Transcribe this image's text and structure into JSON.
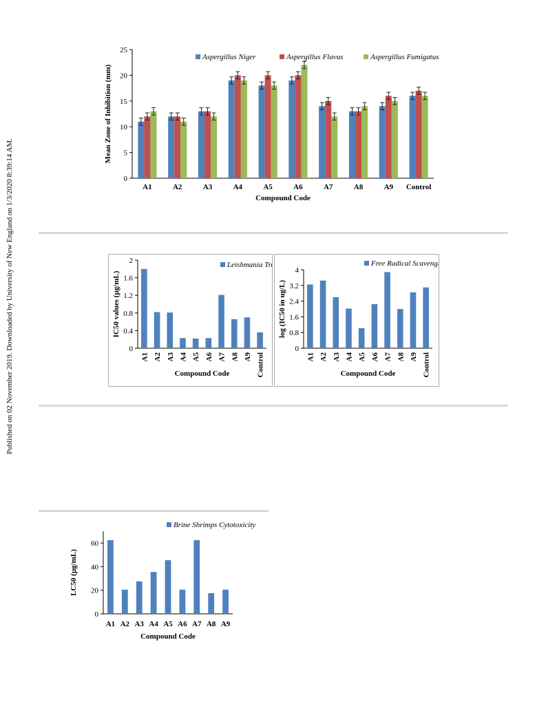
{
  "side_note": "Published on 02 November 2019. Downloaded by University of New England on 1/3/2020 8:39:14 AM.",
  "colors": {
    "blue": "#4f81bd",
    "red": "#c0504d",
    "green": "#9bbb59",
    "rule": "#d8d8d8"
  },
  "chart_data": [
    {
      "type": "bar",
      "categories": [
        "A1",
        "A2",
        "A3",
        "A4",
        "A5",
        "A6",
        "A7",
        "A8",
        "A9",
        "Control"
      ],
      "series": [
        {
          "name": "Aspergillus Niger",
          "values": [
            11,
            12,
            13,
            19,
            18,
            19,
            14,
            13,
            14,
            16
          ]
        },
        {
          "name": "Aspergillus Flavus",
          "values": [
            12,
            12,
            13,
            20,
            20,
            20,
            15,
            13,
            16,
            17
          ]
        },
        {
          "name": "Aspergillus Fumigatus",
          "values": [
            13,
            11,
            12,
            19,
            18,
            22,
            12,
            14,
            15,
            16
          ]
        }
      ],
      "error_bars": true,
      "xlabel": "Compound Code",
      "ylabel": "Mean Zone of Inhibition (mm)",
      "ylim": [
        0,
        25
      ],
      "yticks": [
        "0",
        "5",
        "10",
        "15",
        "20",
        "25"
      ],
      "legend": "top",
      "grid": false
    },
    {
      "type": "bar",
      "categories": [
        "A1",
        "A2",
        "A3",
        "A4",
        "A5",
        "A6",
        "A7",
        "A8",
        "A9",
        "Control"
      ],
      "series": [
        {
          "name": "Leishmania Tropica",
          "values": [
            1.8,
            0.82,
            0.81,
            0.23,
            0.22,
            0.23,
            1.21,
            0.66,
            0.7,
            0.36
          ]
        }
      ],
      "xlabel": "Compound Code",
      "ylabel": "IC50 values (µg/mL)",
      "ylim": [
        0,
        2
      ],
      "yticks": [
        "0",
        "0.4",
        "0.8",
        "1.2",
        "1.6",
        "2"
      ],
      "legend": "top-right",
      "grid": false
    },
    {
      "type": "bar",
      "categories": [
        "A1",
        "A2",
        "A3",
        "A4",
        "A5",
        "A6",
        "A7",
        "A8",
        "A9",
        "Control"
      ],
      "series": [
        {
          "name": "Free Radical Scavenging",
          "values": [
            3.25,
            3.45,
            2.6,
            2.02,
            1.02,
            2.25,
            3.88,
            2.0,
            2.85,
            3.1
          ]
        }
      ],
      "xlabel": "Compound Code",
      "ylabel": "log (IC50 in ug/L)",
      "ylim": [
        0,
        4
      ],
      "yticks": [
        "0",
        "0.8",
        "1.6",
        "2.4",
        "3.2",
        "4"
      ],
      "legend": "top-right",
      "grid": false
    },
    {
      "type": "bar",
      "categories": [
        "A1",
        "A2",
        "A3",
        "A4",
        "A5",
        "A6",
        "A7",
        "A8",
        "A9"
      ],
      "series": [
        {
          "name": "Brine Shrimps Cytotoxicity",
          "values": [
            62.5,
            20.5,
            27.5,
            35.5,
            45.5,
            20.5,
            62.5,
            17.5,
            20.5
          ]
        }
      ],
      "xlabel": "Compound Code",
      "ylabel": "LC50 (µg/mL)",
      "ylim": [
        0,
        70
      ],
      "yticks": [
        "0",
        "20",
        "40",
        "60"
      ],
      "legend": "top",
      "grid": false
    }
  ]
}
